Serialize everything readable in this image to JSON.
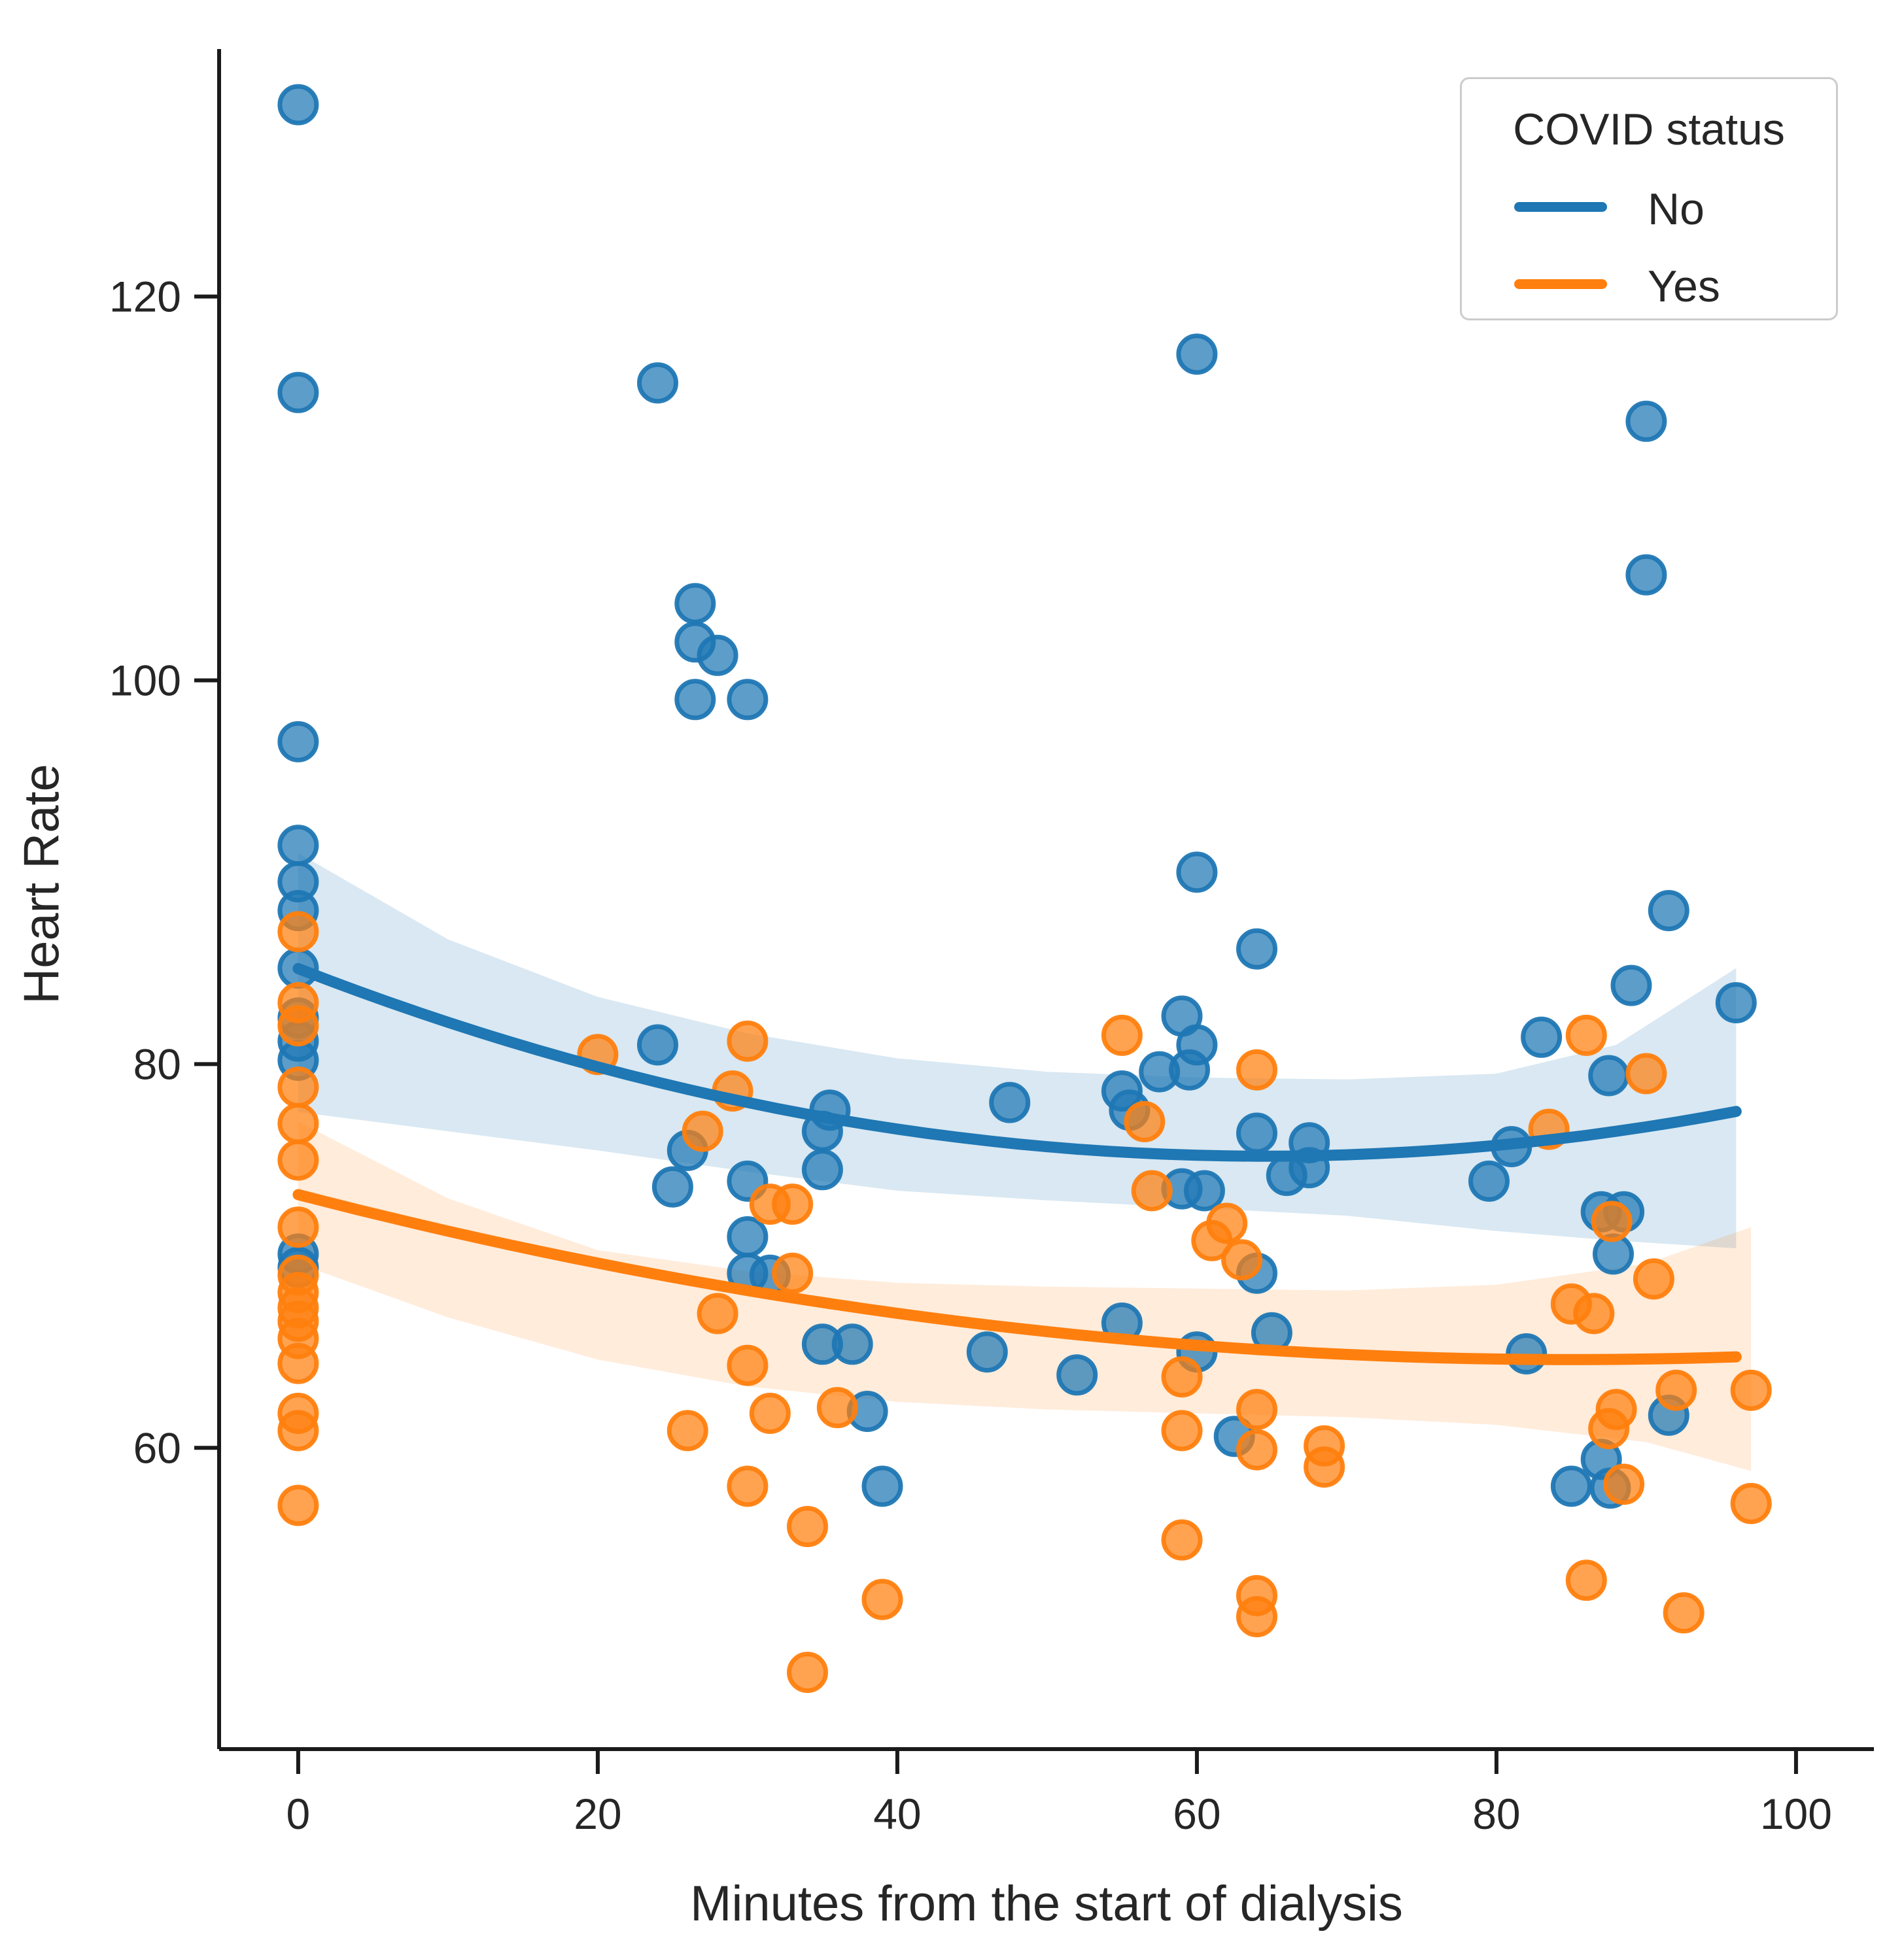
{
  "figure": {
    "background": "#ffffff",
    "text_color": "#262626",
    "spine_color": "#1a1a1a"
  },
  "legend": {
    "title": "COVID status",
    "items": [
      {
        "label": "No",
        "color": "#1f77b4"
      },
      {
        "label": "Yes",
        "color": "#ff7f0e"
      }
    ]
  },
  "chart_data": {
    "type": "scatter",
    "title": "",
    "xlabel": "Minutes from the start of dialysis",
    "ylabel": "Heart Rate",
    "xlim": [
      -5.28,
      105.2
    ],
    "ylim": [
      44.3,
      132.9
    ],
    "x_ticks": [
      0,
      20,
      40,
      60,
      80,
      100
    ],
    "y_ticks": [
      60,
      80,
      100,
      120
    ],
    "grid": false,
    "legend_position": "upper right",
    "series": [
      {
        "name": "No",
        "color": "#1f77b4",
        "band_opacity": 0.17,
        "points": [
          [
            0,
            130
          ],
          [
            0,
            115
          ],
          [
            0,
            96.8
          ],
          [
            0,
            91.4
          ],
          [
            0,
            89.5
          ],
          [
            0,
            88
          ],
          [
            0,
            85
          ],
          [
            0,
            82.4
          ],
          [
            0,
            81.2
          ],
          [
            0,
            80.2
          ],
          [
            0,
            70.1
          ],
          [
            0,
            69.4
          ],
          [
            24,
            115.5
          ],
          [
            60,
            117
          ],
          [
            90,
            113.5
          ],
          [
            90,
            105.5
          ],
          [
            26.5,
            104
          ],
          [
            26.5,
            102
          ],
          [
            28,
            101.3
          ],
          [
            26.5,
            99
          ],
          [
            30,
            99
          ],
          [
            60,
            90
          ],
          [
            91.5,
            88
          ],
          [
            64,
            86
          ],
          [
            24,
            81
          ],
          [
            26,
            75.5
          ],
          [
            25,
            73.6
          ],
          [
            30,
            73.9
          ],
          [
            35.5,
            77.6
          ],
          [
            35,
            76.5
          ],
          [
            35,
            74.5
          ],
          [
            30,
            71
          ],
          [
            30,
            69.1
          ],
          [
            31.5,
            69
          ],
          [
            35,
            65.4
          ],
          [
            37,
            65.4
          ],
          [
            38,
            61.9
          ],
          [
            39,
            58
          ],
          [
            47.5,
            78
          ],
          [
            46,
            65
          ],
          [
            52,
            63.8
          ],
          [
            55,
            78.6
          ],
          [
            55.5,
            77.6
          ],
          [
            59,
            82.5
          ],
          [
            60,
            81
          ],
          [
            57.5,
            79.6
          ],
          [
            59.5,
            79.7
          ],
          [
            64,
            76.4
          ],
          [
            67.5,
            75.9
          ],
          [
            66,
            74.2
          ],
          [
            67.5,
            74.6
          ],
          [
            59,
            73.5
          ],
          [
            60.5,
            73.4
          ],
          [
            55,
            66.5
          ],
          [
            60,
            65
          ],
          [
            62.5,
            60.6
          ],
          [
            64,
            69.1
          ],
          [
            65,
            66
          ],
          [
            79.5,
            73.9
          ],
          [
            81,
            75.7
          ],
          [
            83,
            81.4
          ],
          [
            87.5,
            79.4
          ],
          [
            89,
            84.1
          ],
          [
            96,
            83.2
          ],
          [
            82,
            64.9
          ],
          [
            85,
            58
          ],
          [
            87,
            59.4
          ],
          [
            87.6,
            57.9
          ],
          [
            91.5,
            61.7
          ],
          [
            87,
            72.3
          ],
          [
            88.5,
            72.3
          ],
          [
            87.8,
            70.1
          ]
        ],
        "trend": {
          "type": "quadratic",
          "min_value": 75.2,
          "curvature": 0.00235,
          "vertex_t": 64.5,
          "t_range": [
            0,
            96
          ]
        },
        "ci_band": {
          "t": [
            0,
            10,
            20,
            30,
            40,
            50,
            60,
            70,
            80,
            88,
            96
          ],
          "upper": [
            91.0,
            86.5,
            83.5,
            81.6,
            80.3,
            79.6,
            79.3,
            79.2,
            79.5,
            81.0,
            85.0
          ],
          "lower": [
            77.5,
            76.5,
            75.5,
            74.4,
            73.4,
            72.9,
            72.5,
            72.1,
            71.3,
            70.8,
            70.4
          ]
        }
      },
      {
        "name": "Yes",
        "color": "#ff7f0e",
        "band_opacity": 0.15,
        "points": [
          [
            0,
            86.9
          ],
          [
            0,
            83.2
          ],
          [
            0,
            82
          ],
          [
            0,
            78.8
          ],
          [
            0,
            76.9
          ],
          [
            0,
            75
          ],
          [
            0,
            71.5
          ],
          [
            0,
            69
          ],
          [
            0,
            68.1
          ],
          [
            0,
            67.3
          ],
          [
            0,
            66.6
          ],
          [
            0,
            65.7
          ],
          [
            0,
            64.4
          ],
          [
            0,
            61.8
          ],
          [
            0,
            60.9
          ],
          [
            0,
            57
          ],
          [
            20,
            80.5
          ],
          [
            30,
            81.2
          ],
          [
            29,
            78.6
          ],
          [
            27,
            76.5
          ],
          [
            31.5,
            72.7
          ],
          [
            33,
            72.7
          ],
          [
            33,
            69.1
          ],
          [
            28,
            67
          ],
          [
            30,
            64.3
          ],
          [
            26,
            60.9
          ],
          [
            31.5,
            61.8
          ],
          [
            36,
            62.1
          ],
          [
            30,
            58
          ],
          [
            34,
            55.9
          ],
          [
            39,
            52.1
          ],
          [
            34,
            48.3
          ],
          [
            55,
            81.5
          ],
          [
            64,
            79.7
          ],
          [
            56.5,
            77
          ],
          [
            57,
            73.4
          ],
          [
            62,
            71.7
          ],
          [
            61,
            70.8
          ],
          [
            63,
            69.8
          ],
          [
            59,
            63.7
          ],
          [
            59,
            60.9
          ],
          [
            64,
            62
          ],
          [
            64,
            59.9
          ],
          [
            68.5,
            60.1
          ],
          [
            68.5,
            59
          ],
          [
            59,
            55.2
          ],
          [
            64,
            52.3
          ],
          [
            64,
            51.2
          ],
          [
            83.5,
            76.6
          ],
          [
            86,
            81.5
          ],
          [
            90,
            79.5
          ],
          [
            87.7,
            71.8
          ],
          [
            90.5,
            68.8
          ],
          [
            85,
            67.5
          ],
          [
            86.5,
            67
          ],
          [
            88,
            62
          ],
          [
            87.5,
            61
          ],
          [
            92,
            63
          ],
          [
            97,
            63
          ],
          [
            88.5,
            58.1
          ],
          [
            97,
            57.1
          ],
          [
            86,
            53.1
          ],
          [
            92.5,
            51.4
          ]
        ],
        "trend": {
          "type": "quadratic",
          "min_value": 64.6,
          "curvature": 0.00119,
          "vertex_t": 85,
          "t_range": [
            0,
            97
          ]
        },
        "ci_band": {
          "t": [
            0,
            10,
            20,
            30,
            40,
            50,
            60,
            70,
            80,
            90,
            97
          ],
          "upper": [
            77.0,
            73.0,
            70.3,
            69.2,
            68.6,
            68.4,
            68.3,
            68.2,
            68.5,
            69.6,
            71.5
          ],
          "lower": [
            69.6,
            66.8,
            64.6,
            63.2,
            62.4,
            62.0,
            61.8,
            61.6,
            61.2,
            60.3,
            58.8
          ]
        }
      }
    ]
  }
}
